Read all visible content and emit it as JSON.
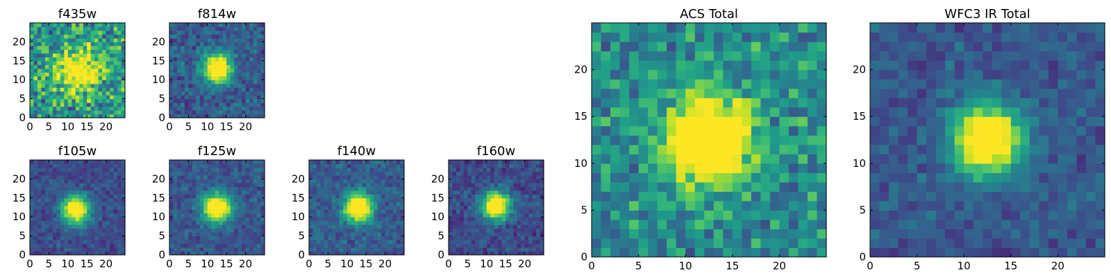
{
  "chart_data": [
    {
      "type": "heatmap",
      "title": "f435w",
      "xlim": [
        0,
        25
      ],
      "ylim": [
        0,
        25
      ],
      "xticks": [
        0,
        5,
        10,
        15,
        20
      ],
      "yticks": [
        0,
        5,
        10,
        15,
        20
      ],
      "colormap": "viridis",
      "cells": [
        25,
        25
      ],
      "peak": [
        12.5,
        12.5
      ],
      "peak_level": 0.55,
      "spread": 4.0,
      "noise": 0.45,
      "background": 0.7,
      "seed": 11
    },
    {
      "type": "heatmap",
      "title": "f814w",
      "xlim": [
        0,
        25
      ],
      "ylim": [
        0,
        25
      ],
      "xticks": [
        0,
        5,
        10,
        15,
        20
      ],
      "yticks": [
        0,
        5,
        10,
        15,
        20
      ],
      "colormap": "viridis",
      "cells": [
        25,
        25
      ],
      "peak": [
        12.5,
        13
      ],
      "peak_level": 1.0,
      "spread": 2.6,
      "noise": 0.22,
      "background": 0.38,
      "seed": 23
    },
    {
      "type": "heatmap",
      "title": "f105w",
      "xlim": [
        0,
        25
      ],
      "ylim": [
        0,
        25
      ],
      "xticks": [
        0,
        5,
        10,
        15,
        20
      ],
      "yticks": [
        0,
        5,
        10,
        15,
        20
      ],
      "colormap": "viridis",
      "cells": [
        25,
        25
      ],
      "peak": [
        12,
        12
      ],
      "peak_level": 1.0,
      "spread": 2.6,
      "noise": 0.14,
      "background": 0.3,
      "seed": 37
    },
    {
      "type": "heatmap",
      "title": "f125w",
      "xlim": [
        0,
        25
      ],
      "ylim": [
        0,
        25
      ],
      "xticks": [
        0,
        5,
        10,
        15,
        20
      ],
      "yticks": [
        0,
        5,
        10,
        15,
        20
      ],
      "colormap": "viridis",
      "cells": [
        25,
        25
      ],
      "peak": [
        12.5,
        12.5
      ],
      "peak_level": 1.0,
      "spread": 2.6,
      "noise": 0.14,
      "background": 0.35,
      "seed": 41
    },
    {
      "type": "heatmap",
      "title": "f140w",
      "xlim": [
        0,
        25
      ],
      "ylim": [
        0,
        25
      ],
      "xticks": [
        0,
        5,
        10,
        15,
        20
      ],
      "yticks": [
        0,
        5,
        10,
        15,
        20
      ],
      "colormap": "viridis",
      "cells": [
        25,
        25
      ],
      "peak": [
        13,
        12.5
      ],
      "peak_level": 1.0,
      "spread": 2.6,
      "noise": 0.16,
      "background": 0.38,
      "seed": 53
    },
    {
      "type": "heatmap",
      "title": "f160w",
      "xlim": [
        0,
        25
      ],
      "ylim": [
        0,
        25
      ],
      "xticks": [
        0,
        5,
        10,
        15,
        20
      ],
      "yticks": [
        0,
        5,
        10,
        15,
        20
      ],
      "colormap": "viridis",
      "cells": [
        25,
        25
      ],
      "peak": [
        12.5,
        13
      ],
      "peak_level": 1.0,
      "spread": 2.6,
      "noise": 0.16,
      "background": 0.3,
      "seed": 67
    },
    {
      "type": "heatmap",
      "title": "ACS Total",
      "xlim": [
        0,
        25
      ],
      "ylim": [
        0,
        25
      ],
      "xticks": [
        0,
        5,
        10,
        15,
        20
      ],
      "yticks": [
        0,
        5,
        10,
        15,
        20
      ],
      "colormap": "viridis",
      "cells": [
        25,
        25
      ],
      "peak": [
        12.5,
        12.5
      ],
      "peak_level": 0.95,
      "spread": 3.2,
      "noise": 0.3,
      "background": 0.62,
      "seed": 79
    },
    {
      "type": "heatmap",
      "title": "WFC3 IR Total",
      "xlim": [
        0,
        25
      ],
      "ylim": [
        0,
        25
      ],
      "xticks": [
        0,
        5,
        10,
        15,
        20
      ],
      "yticks": [
        0,
        5,
        10,
        15,
        20
      ],
      "colormap": "viridis",
      "cells": [
        25,
        25
      ],
      "peak": [
        12.5,
        12.5
      ],
      "peak_level": 1.0,
      "spread": 2.6,
      "noise": 0.14,
      "background": 0.35,
      "seed": 97
    }
  ]
}
